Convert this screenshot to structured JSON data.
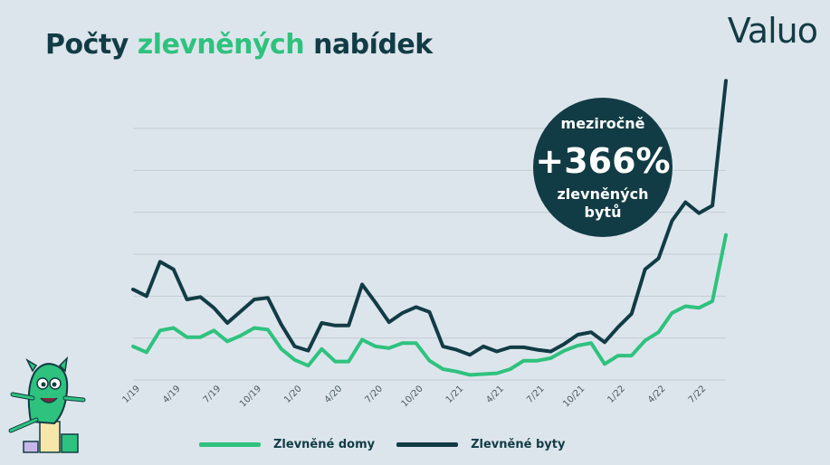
{
  "header": {
    "title_part1": "Počty ",
    "title_accent": "zlevněných",
    "title_part2": " nabídek",
    "logo": "Valuo"
  },
  "callout": {
    "line1": "meziročně",
    "big": "+366%",
    "line3": "zlevněných",
    "line4": "bytů"
  },
  "colors": {
    "domy": "#2ec27e",
    "byty": "#123c45",
    "bubble": "#123c45",
    "grid": "#c3ccd3"
  },
  "mascot": "green-mascot-icon",
  "chart_data": {
    "type": "line",
    "x_ticks": [
      "1/19",
      "4/19",
      "7/19",
      "10/19",
      "1/20",
      "4/20",
      "7/20",
      "10/20",
      "1/21",
      "4/21",
      "7/21",
      "10/21",
      "1/22",
      "4/22",
      "7/22"
    ],
    "ylim": [
      0,
      300
    ],
    "grid": true,
    "legend_position": "bottom",
    "series": [
      {
        "name": "Zlevněné domy",
        "values": [
          40,
          33,
          59,
          62,
          51,
          51,
          59,
          46,
          53,
          62,
          60,
          37,
          24,
          17,
          37,
          22,
          22,
          48,
          40,
          38,
          44,
          44,
          23,
          13,
          10,
          6,
          7,
          8,
          13,
          23,
          23,
          26,
          35,
          41,
          44,
          19,
          29,
          29,
          47,
          57,
          80,
          88,
          86,
          94,
          173
        ]
      },
      {
        "name": "Zlevněné byty",
        "values": [
          108,
          100,
          141,
          132,
          96,
          99,
          86,
          68,
          82,
          96,
          98,
          66,
          40,
          35,
          68,
          65,
          65,
          114,
          92,
          69,
          80,
          87,
          81,
          40,
          36,
          30,
          40,
          34,
          39,
          39,
          36,
          34,
          43,
          54,
          57,
          45,
          63,
          79,
          132,
          145,
          190,
          212,
          199,
          208,
          357
        ]
      }
    ]
  }
}
